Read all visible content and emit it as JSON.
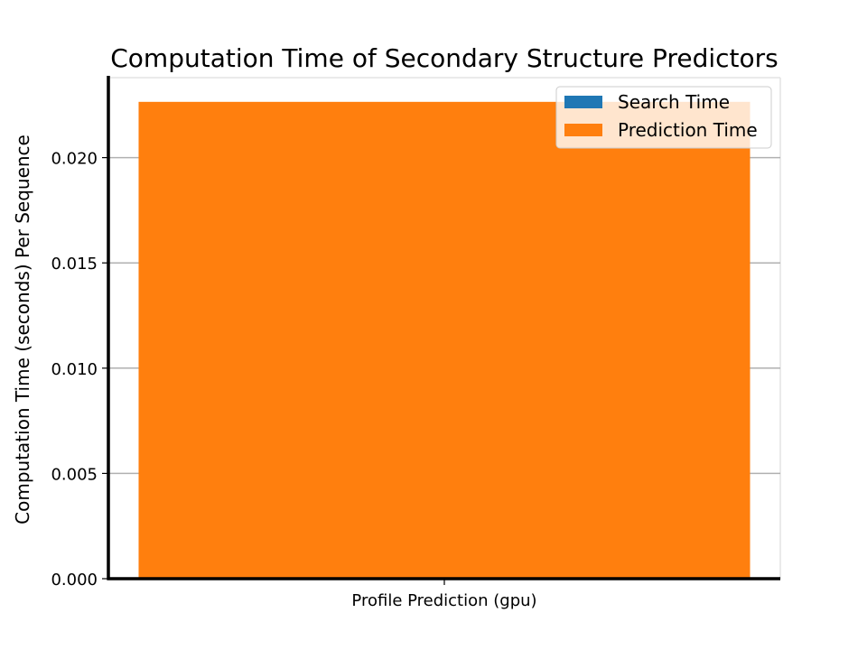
{
  "chart_data": {
    "type": "bar",
    "stacked": true,
    "title": "Computation Time of Secondary Structure Predictors",
    "xlabel": "",
    "ylabel": "Computation Time (seconds) Per Sequence",
    "categories": [
      "Profile Prediction (gpu)"
    ],
    "series": [
      {
        "name": "Search Time",
        "values": [
          0.0
        ],
        "color": "#1f77b4"
      },
      {
        "name": "Prediction Time",
        "values": [
          0.02265
        ],
        "color": "#ff7f0e"
      }
    ],
    "ylim": [
      0,
      0.0238
    ],
    "yticks": [
      0.0,
      0.005,
      0.01,
      0.015,
      0.02
    ],
    "ytick_labels": [
      "0.000",
      "0.005",
      "0.010",
      "0.015",
      "0.020"
    ],
    "grid": "horizontal",
    "legend_position": "top-right"
  }
}
